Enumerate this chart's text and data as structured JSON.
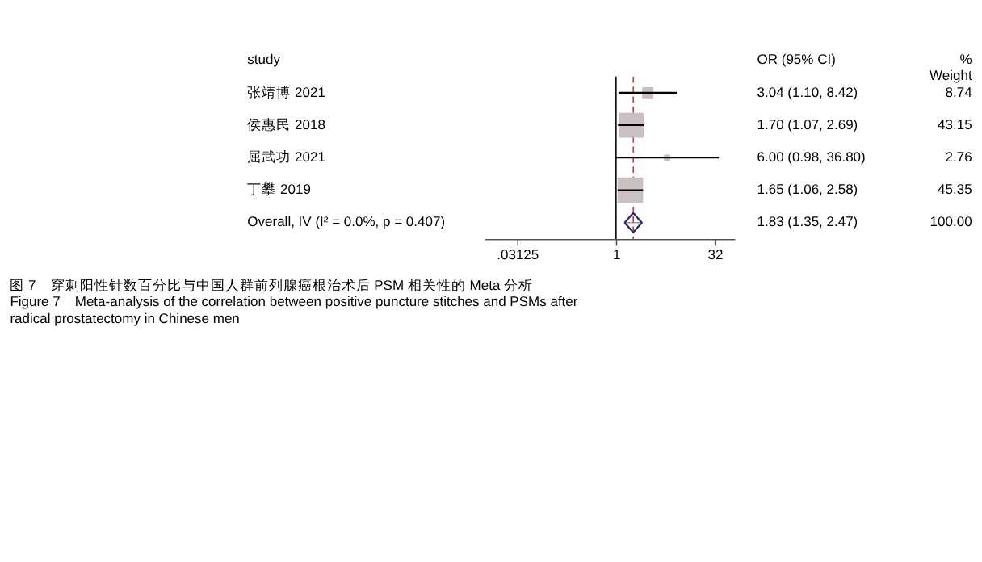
{
  "chart_data": {
    "type": "scatter",
    "orientation": "horizontal",
    "categories": [
      "张靖博 2021",
      "侯惠民 2018",
      "屈武功 2021",
      "丁攀 2019",
      "Overall, IV (I² = 0.0%, p = 0.407)"
    ],
    "series": [
      {
        "marker": "square",
        "color": "#c9c1c1",
        "values": [
          3.04,
          1.7,
          6.0,
          1.65,
          null
        ],
        "errors": [
          [
            1.1,
            8.42
          ],
          [
            1.07,
            2.69
          ],
          [
            0.98,
            36.8
          ],
          [
            1.06,
            2.58
          ],
          null
        ],
        "sizes": [
          0.193,
          0.951,
          0.061,
          1,
          null
        ]
      },
      {
        "marker": "diamond",
        "color": "#2b2a6b",
        "values": [
          null,
          null,
          null,
          null,
          1.83
        ],
        "errors": [
          null,
          null,
          null,
          null,
          [
            1.35,
            2.47
          ]
        ]
      }
    ],
    "log": "x",
    "xlim": [
      0.01,
      64
    ],
    "xticks": [
      {
        "value": 0.03125,
        "label": ".03125"
      },
      1,
      32
    ],
    "ref_lines": [
      {
        "axis": "x",
        "value": 1,
        "color": "#000000",
        "line_style": "solid"
      },
      {
        "axis": "x",
        "value": 1.83,
        "color": "#b0404a",
        "line_style": "dashed"
      }
    ],
    "grid": false,
    "legend": false,
    "annotations": [
      "study",
      "OR (95% CI)",
      "%\nWeight",
      "3.04 (1.10, 8.42)",
      "1.70 (1.07, 2.69)",
      "6.00 (0.98, 36.80)",
      "1.65 (1.06, 2.58)",
      "1.83 (1.35, 2.47)",
      "8.74",
      "43.15",
      "2.76",
      "45.35",
      "100.00",
      "图 7　穿刺阳性针数百分比与中国人群前列腺癌根治术后 PSM 相关性的 Meta 分析",
      "Figure 7　Meta-analysis of the correlation between positive puncture stitches and PSMs after radical prostatectomy in Chinese men"
    ]
  }
}
